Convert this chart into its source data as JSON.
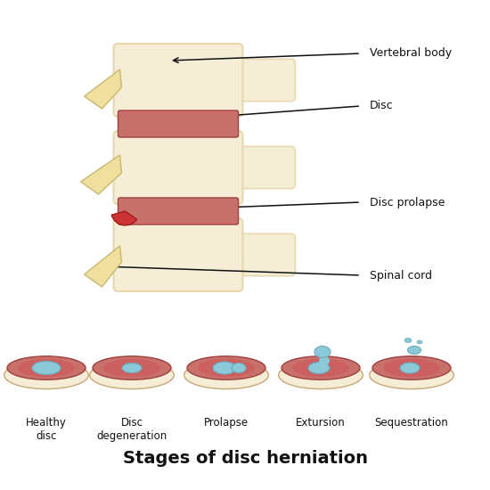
{
  "title": "Stages of disc herniation",
  "title_fontsize": 14,
  "title_fontweight": "bold",
  "bg_color": "#ffffff",
  "labels": {
    "vertebral_body": "Vertebral body",
    "disc": "Disc",
    "disc_prolapse": "Disc prolapse",
    "spinal_cord": "Spinal cord"
  },
  "stage_labels": [
    "Healthy\ndisc",
    "Disc\ndegeneration",
    "Prolapse",
    "Extursion",
    "Sequestration"
  ],
  "colors": {
    "vertebra": "#F5EDD5",
    "vertebra_shadow": "#E8D9B0",
    "disc_outer": "#C8706A",
    "disc_nucleus": "#8BC8D8",
    "herniation_red": "#CC3333",
    "bg_color": "#ffffff"
  },
  "annotation_fontsize": 9
}
